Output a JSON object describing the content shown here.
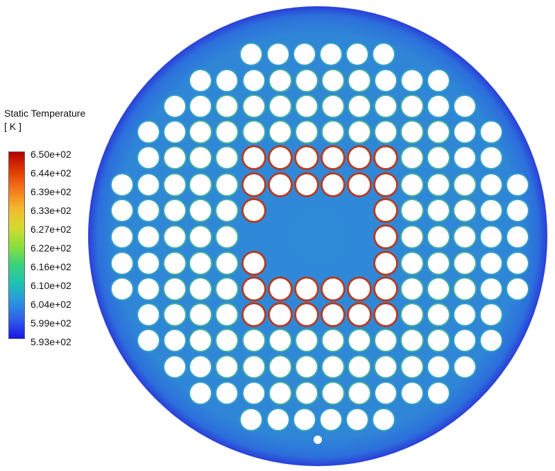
{
  "legend": {
    "title": "Static Temperature",
    "unit": "[ K ]",
    "ticks": [
      "6.50e+02",
      "6.44e+02",
      "6.39e+02",
      "6.33e+02",
      "6.27e+02",
      "6.22e+02",
      "6.16e+02",
      "6.10e+02",
      "6.04e+02",
      "5.99e+02",
      "5.93e+02"
    ],
    "colormap": [
      "#b30000",
      "#e03a00",
      "#f2781a",
      "#f5b72e",
      "#d6d92e",
      "#8fe03a",
      "#3dd27a",
      "#1ec4b0",
      "#2b97e0",
      "#2e5ee8",
      "#1a16e6"
    ]
  },
  "plate": {
    "base_color": "#2f8ad8",
    "edge_color": "#2a3fd8",
    "hot_color": "#b83a1e",
    "warm_color": "#57d46a",
    "tube_color": "#ffffff"
  }
}
